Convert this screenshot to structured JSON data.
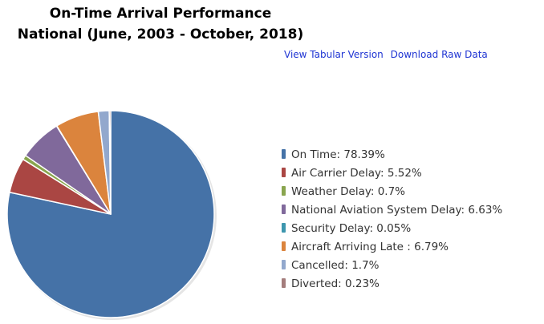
{
  "header": {
    "title_line_1": "On-Time Arrival Performance",
    "title_line_2": "National (June, 2003 - October, 2018)"
  },
  "links": {
    "tabular": "View Tabular Version",
    "download": "Download Raw Data"
  },
  "chart_data": {
    "type": "pie",
    "title": "On-Time Arrival Performance National (June, 2003 - October, 2018)",
    "categories": [
      "On Time",
      "Air Carrier Delay",
      "Weather Delay",
      "National Aviation System Delay",
      "Security Delay",
      "Aircraft Arriving Late ",
      "Cancelled",
      "Diverted"
    ],
    "values": [
      78.39,
      5.52,
      0.7,
      6.63,
      0.05,
      6.79,
      1.7,
      0.23
    ],
    "colors": [
      "#4572a7",
      "#aa4643",
      "#89a54e",
      "#80699b",
      "#3d96ae",
      "#db843d",
      "#92a8cd",
      "#a47d7c"
    ],
    "legend_position": "right",
    "unit": "%"
  }
}
